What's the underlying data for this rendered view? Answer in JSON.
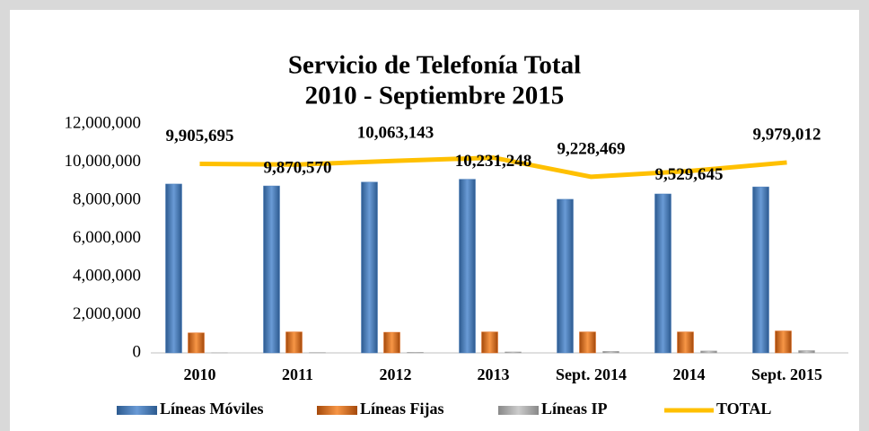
{
  "chart_data": {
    "type": "bar-line",
    "title": "Servicio de Telefonía Total",
    "subtitle": "2010 - Septiembre 2015",
    "categories": [
      "2010",
      "2011",
      "2012",
      "2013",
      "Sept. 2014",
      "2014",
      "Sept. 2015"
    ],
    "series": [
      {
        "name": "Líneas Móviles",
        "color": "#4a7ebb",
        "values": [
          8850000,
          8750000,
          8950000,
          9100000,
          8050000,
          8330000,
          8700000
        ]
      },
      {
        "name": "Líneas Fijas",
        "color": "#e46c1e",
        "values": [
          1050000,
          1100000,
          1080000,
          1100000,
          1100000,
          1100000,
          1150000
        ]
      },
      {
        "name": "Líneas IP",
        "color": "#a6a6a6",
        "values": [
          10000,
          20000,
          30000,
          50000,
          80000,
          100000,
          120000
        ]
      },
      {
        "name": "TOTAL",
        "color": "#ffc000",
        "type": "line",
        "values": [
          9905695,
          9870570,
          10063143,
          10231248,
          9228469,
          9529645,
          9979012
        ],
        "value_labels": [
          "9,905,695",
          "9,870,570",
          "10,063,143",
          "10,231,248",
          "9,228,469",
          "9,529,645",
          "9,979,012"
        ]
      }
    ],
    "ylim": [
      0,
      12000000
    ],
    "yticks": [
      0,
      {
        "value": 2000000,
        "label": "2,000,000"
      },
      {
        "value": 4000000,
        "label": "4,000,000"
      },
      {
        "value": 6000000,
        "label": "6,000,000"
      },
      {
        "value": 8000000,
        "label": "8,000,000"
      },
      {
        "value": 10000000,
        "label": "10,000,000"
      },
      {
        "value": 12000000,
        "label": "12,000,000"
      }
    ],
    "grid": false,
    "legend": "bottom"
  }
}
